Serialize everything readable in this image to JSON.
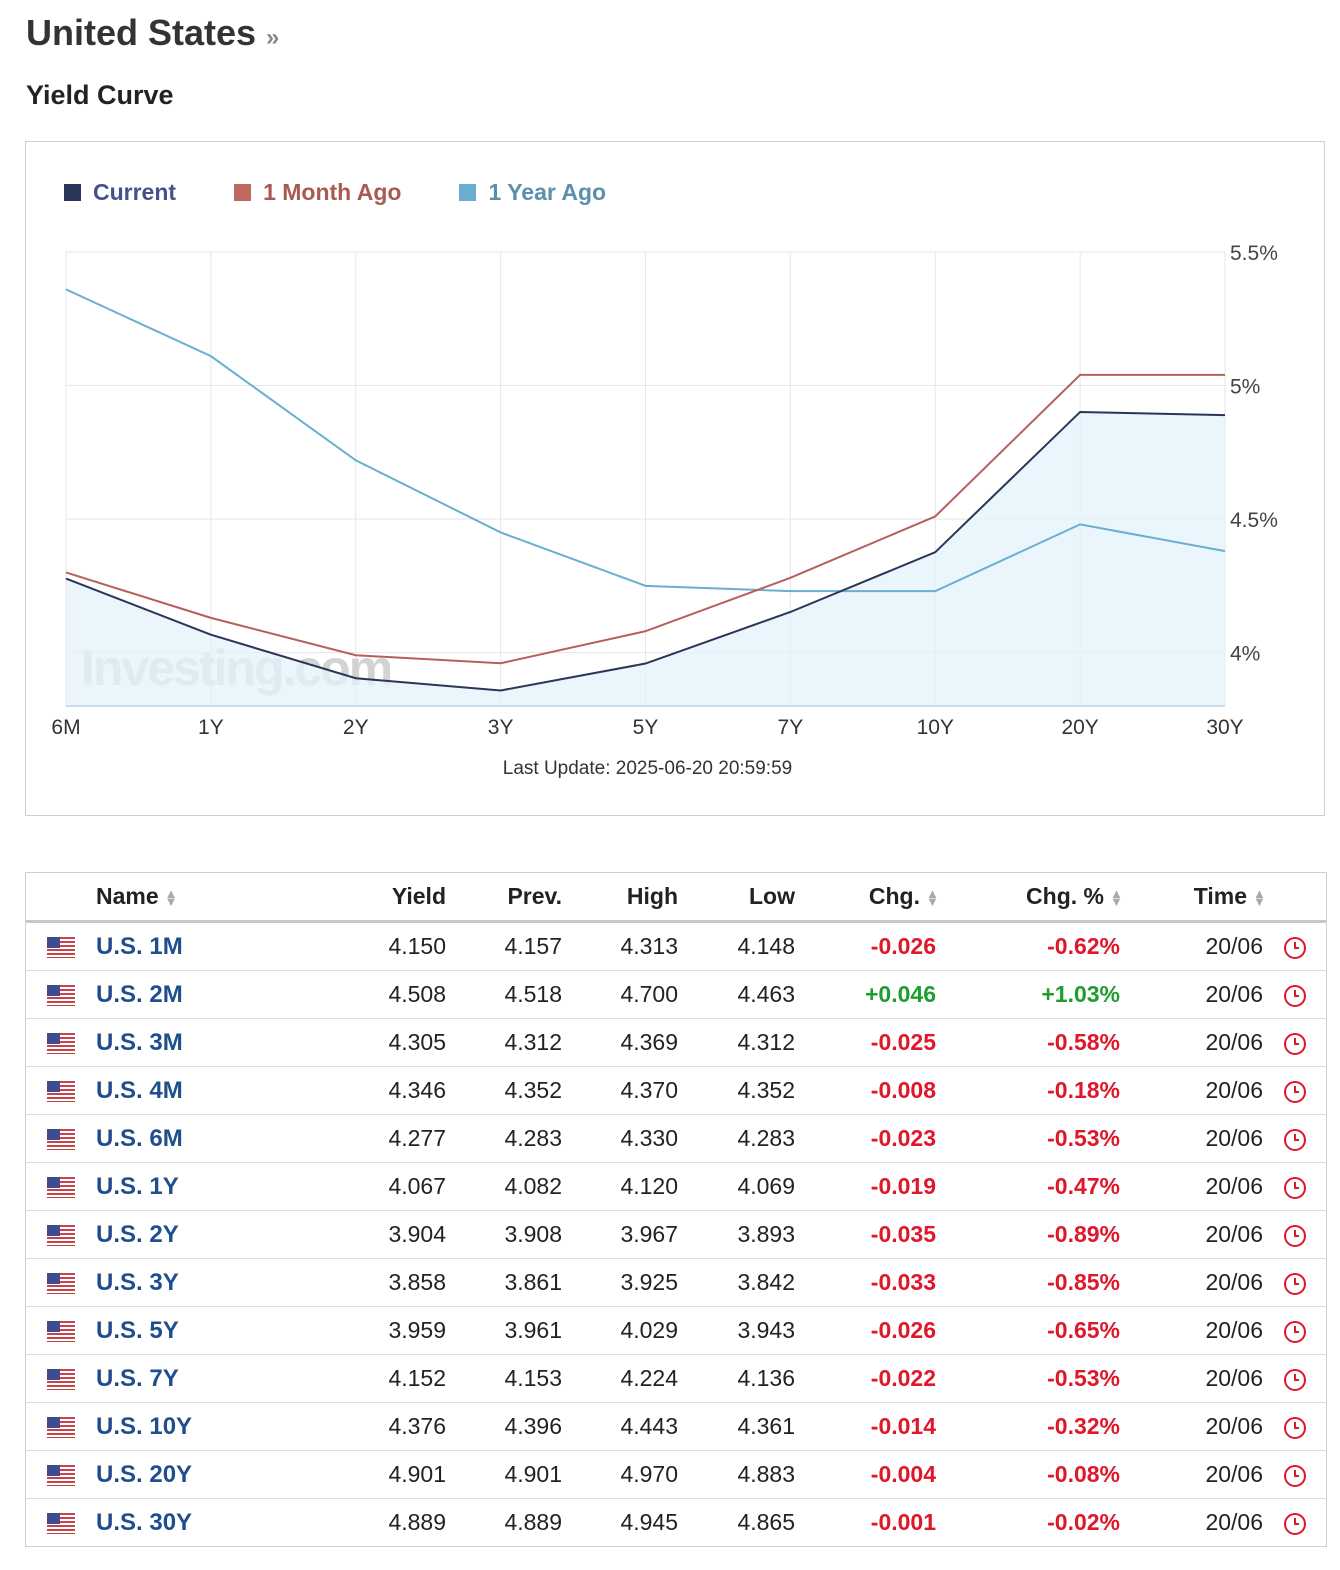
{
  "header": {
    "title": "United States",
    "title_suffix": "»",
    "section": "Yield Curve"
  },
  "colors": {
    "current": "#2b3558",
    "month_ago": "#b5605b",
    "year_ago": "#6aaed0",
    "positive": "#1e9e2e",
    "negative": "#e0162b",
    "link": "#1f4e8f"
  },
  "chart_data": {
    "type": "line",
    "x": [
      "6M",
      "1Y",
      "2Y",
      "3Y",
      "5Y",
      "7Y",
      "10Y",
      "20Y",
      "30Y"
    ],
    "series": [
      {
        "name": "Current",
        "values": [
          4.277,
          4.067,
          3.904,
          3.858,
          3.959,
          4.152,
          4.376,
          4.901,
          4.889
        ],
        "area": true
      },
      {
        "name": "1 Month Ago",
        "values": [
          4.3,
          4.13,
          3.99,
          3.96,
          4.08,
          4.28,
          4.51,
          5.04,
          5.04
        ]
      },
      {
        "name": "1 Year Ago",
        "values": [
          5.36,
          5.11,
          4.72,
          4.45,
          4.25,
          4.23,
          4.23,
          4.48,
          4.38
        ]
      }
    ],
    "yticks": [
      "5.5%",
      "5%",
      "4.5%",
      "4%"
    ],
    "ytick_values": [
      5.5,
      5.0,
      4.5,
      4.0
    ],
    "ylim": [
      3.8,
      5.5
    ],
    "grid": true,
    "legend_position": "top-left",
    "y_axis_side": "right",
    "watermark": "Investing.com",
    "footer": "Last Update: 2025-06-20 20:59:59"
  },
  "table": {
    "headers": {
      "name": "Name",
      "yield": "Yield",
      "prev": "Prev.",
      "high": "High",
      "low": "Low",
      "chg": "Chg.",
      "chg_pct": "Chg. %",
      "time": "Time"
    },
    "rows": [
      {
        "name": "U.S. 1M",
        "yield": "4.150",
        "prev": "4.157",
        "high": "4.313",
        "low": "4.148",
        "chg": "-0.026",
        "chg_pct": "-0.62%",
        "time": "20/06",
        "dir": "neg"
      },
      {
        "name": "U.S. 2M",
        "yield": "4.508",
        "prev": "4.518",
        "high": "4.700",
        "low": "4.463",
        "chg": "+0.046",
        "chg_pct": "+1.03%",
        "time": "20/06",
        "dir": "pos"
      },
      {
        "name": "U.S. 3M",
        "yield": "4.305",
        "prev": "4.312",
        "high": "4.369",
        "low": "4.312",
        "chg": "-0.025",
        "chg_pct": "-0.58%",
        "time": "20/06",
        "dir": "neg"
      },
      {
        "name": "U.S. 4M",
        "yield": "4.346",
        "prev": "4.352",
        "high": "4.370",
        "low": "4.352",
        "chg": "-0.008",
        "chg_pct": "-0.18%",
        "time": "20/06",
        "dir": "neg"
      },
      {
        "name": "U.S. 6M",
        "yield": "4.277",
        "prev": "4.283",
        "high": "4.330",
        "low": "4.283",
        "chg": "-0.023",
        "chg_pct": "-0.53%",
        "time": "20/06",
        "dir": "neg"
      },
      {
        "name": "U.S. 1Y",
        "yield": "4.067",
        "prev": "4.082",
        "high": "4.120",
        "low": "4.069",
        "chg": "-0.019",
        "chg_pct": "-0.47%",
        "time": "20/06",
        "dir": "neg"
      },
      {
        "name": "U.S. 2Y",
        "yield": "3.904",
        "prev": "3.908",
        "high": "3.967",
        "low": "3.893",
        "chg": "-0.035",
        "chg_pct": "-0.89%",
        "time": "20/06",
        "dir": "neg"
      },
      {
        "name": "U.S. 3Y",
        "yield": "3.858",
        "prev": "3.861",
        "high": "3.925",
        "low": "3.842",
        "chg": "-0.033",
        "chg_pct": "-0.85%",
        "time": "20/06",
        "dir": "neg"
      },
      {
        "name": "U.S. 5Y",
        "yield": "3.959",
        "prev": "3.961",
        "high": "4.029",
        "low": "3.943",
        "chg": "-0.026",
        "chg_pct": "-0.65%",
        "time": "20/06",
        "dir": "neg"
      },
      {
        "name": "U.S. 7Y",
        "yield": "4.152",
        "prev": "4.153",
        "high": "4.224",
        "low": "4.136",
        "chg": "-0.022",
        "chg_pct": "-0.53%",
        "time": "20/06",
        "dir": "neg"
      },
      {
        "name": "U.S. 10Y",
        "yield": "4.376",
        "prev": "4.396",
        "high": "4.443",
        "low": "4.361",
        "chg": "-0.014",
        "chg_pct": "-0.32%",
        "time": "20/06",
        "dir": "neg"
      },
      {
        "name": "U.S. 20Y",
        "yield": "4.901",
        "prev": "4.901",
        "high": "4.970",
        "low": "4.883",
        "chg": "-0.004",
        "chg_pct": "-0.08%",
        "time": "20/06",
        "dir": "neg"
      },
      {
        "name": "U.S. 30Y",
        "yield": "4.889",
        "prev": "4.889",
        "high": "4.945",
        "low": "4.865",
        "chg": "-0.001",
        "chg_pct": "-0.02%",
        "time": "20/06",
        "dir": "neg"
      }
    ]
  }
}
